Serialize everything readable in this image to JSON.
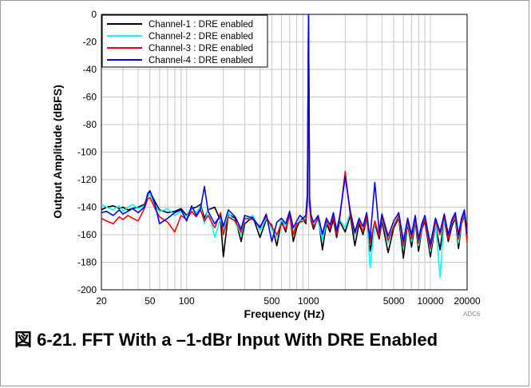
{
  "caption": "図 6-21. FFT With a –1-dBr Input With DRE Enabled",
  "figure_code": "ADC6",
  "chart_data": {
    "type": "line",
    "title": "",
    "xlabel": "Frequency (Hz)",
    "ylabel": "Output Amplitude (dBFS)",
    "xscale": "log",
    "xlim": [
      20,
      20000
    ],
    "ylim": [
      -200,
      0
    ],
    "x_ticks": [
      20,
      50,
      100,
      500,
      1000,
      5000,
      10000,
      20000
    ],
    "x_tick_labels": [
      "20",
      "50",
      "100",
      "500",
      "1000",
      "5000",
      "10000",
      "20000"
    ],
    "y_ticks": [
      0,
      -20,
      -40,
      -60,
      -80,
      -100,
      -120,
      -140,
      -160,
      -180,
      -200
    ],
    "y_tick_labels": [
      "0",
      "-20",
      "-40",
      "-60",
      "-80",
      "-100",
      "-120",
      "-140",
      "-160",
      "-180",
      "-200"
    ],
    "grid": true,
    "legend_position": "top-left",
    "series": [
      {
        "name": "Channel-1 : DRE enabled",
        "color": "#000000",
        "x": [
          20,
          22,
          25,
          28,
          30,
          33,
          36,
          40,
          45,
          48,
          50,
          55,
          60,
          70,
          80,
          90,
          100,
          110,
          120,
          130,
          140,
          150,
          170,
          190,
          200,
          220,
          250,
          280,
          300,
          350,
          400,
          450,
          500,
          550,
          600,
          650,
          700,
          750,
          800,
          850,
          900,
          950,
          980,
          1000,
          1020,
          1050,
          1100,
          1200,
          1300,
          1400,
          1500,
          1600,
          1700,
          1800,
          2000,
          2200,
          2400,
          2600,
          2800,
          3000,
          3200,
          3500,
          3800,
          4000,
          4500,
          5000,
          5500,
          6000,
          6500,
          7000,
          7500,
          8000,
          8500,
          9000,
          10000,
          11000,
          12000,
          13000,
          14000,
          15000,
          16000,
          17000,
          18000,
          19000,
          20000
        ],
        "y": [
          -142,
          -140,
          -139,
          -141,
          -140,
          -142,
          -141,
          -140,
          -138,
          -132,
          -129,
          -136,
          -142,
          -144,
          -143,
          -141,
          -146,
          -141,
          -140,
          -138,
          -148,
          -142,
          -140,
          -150,
          -176,
          -145,
          -148,
          -165,
          -152,
          -147,
          -162,
          -149,
          -153,
          -168,
          -150,
          -158,
          -144,
          -165,
          -155,
          -150,
          -148,
          -152,
          -135,
          -1,
          -136,
          -150,
          -156,
          -147,
          -171,
          -152,
          -158,
          -149,
          -162,
          -150,
          -158,
          -146,
          -168,
          -152,
          -160,
          -148,
          -172,
          -152,
          -163,
          -150,
          -173,
          -155,
          -148,
          -177,
          -152,
          -169,
          -150,
          -172,
          -156,
          -150,
          -176,
          -152,
          -171,
          -149,
          -165,
          -154,
          -148,
          -170,
          -152,
          -146,
          -162
        ]
      },
      {
        "name": "Channel-2 : DRE enabled",
        "color": "#00ffff",
        "x": [
          20,
          22,
          25,
          28,
          30,
          33,
          36,
          40,
          45,
          48,
          50,
          55,
          60,
          70,
          80,
          90,
          100,
          110,
          120,
          130,
          140,
          150,
          170,
          190,
          200,
          220,
          250,
          280,
          300,
          350,
          400,
          450,
          500,
          550,
          600,
          650,
          700,
          750,
          800,
          850,
          900,
          950,
          980,
          1000,
          1020,
          1050,
          1100,
          1200,
          1300,
          1400,
          1500,
          1600,
          1700,
          1800,
          2000,
          2200,
          2400,
          2600,
          2800,
          3000,
          3200,
          3500,
          3800,
          4000,
          4500,
          5000,
          5500,
          6000,
          6500,
          7000,
          7500,
          8000,
          8500,
          9000,
          10000,
          11000,
          12000,
          13000,
          14000,
          15000,
          16000,
          17000,
          18000,
          19000,
          20000
        ],
        "y": [
          -138,
          -140,
          -142,
          -139,
          -143,
          -140,
          -138,
          -141,
          -139,
          -131,
          -130,
          -139,
          -143,
          -141,
          -146,
          -143,
          -147,
          -140,
          -144,
          -139,
          -152,
          -141,
          -162,
          -148,
          -158,
          -144,
          -151,
          -160,
          -149,
          -146,
          -157,
          -148,
          -156,
          -162,
          -149,
          -154,
          -147,
          -158,
          -153,
          -149,
          -151,
          -147,
          -133,
          -1,
          -138,
          -148,
          -153,
          -150,
          -164,
          -151,
          -155,
          -146,
          -158,
          -149,
          -155,
          -144,
          -161,
          -150,
          -157,
          -146,
          -184,
          -151,
          -160,
          -148,
          -166,
          -153,
          -147,
          -170,
          -151,
          -165,
          -149,
          -168,
          -155,
          -148,
          -172,
          -151,
          -191,
          -148,
          -162,
          -152,
          -147,
          -166,
          -151,
          -145,
          -158
        ]
      },
      {
        "name": "Channel-3 : DRE enabled",
        "color": "#ff0000",
        "x": [
          20,
          22,
          25,
          28,
          30,
          33,
          36,
          40,
          45,
          48,
          50,
          55,
          60,
          70,
          80,
          90,
          100,
          110,
          120,
          130,
          140,
          150,
          170,
          190,
          200,
          220,
          250,
          280,
          300,
          350,
          400,
          450,
          500,
          550,
          600,
          650,
          700,
          750,
          800,
          850,
          900,
          950,
          980,
          1000,
          1020,
          1050,
          1100,
          1200,
          1300,
          1400,
          1500,
          1600,
          1700,
          1800,
          2000,
          2200,
          2400,
          2600,
          2800,
          3000,
          3200,
          3500,
          3800,
          4000,
          4500,
          5000,
          5500,
          6000,
          6500,
          7000,
          7500,
          8000,
          8500,
          9000,
          10000,
          11000,
          12000,
          13000,
          14000,
          15000,
          16000,
          17000,
          18000,
          19000,
          20000
        ],
        "y": [
          -148,
          -150,
          -152,
          -147,
          -149,
          -146,
          -148,
          -150,
          -141,
          -134,
          -133,
          -141,
          -147,
          -151,
          -158,
          -146,
          -149,
          -143,
          -147,
          -142,
          -150,
          -146,
          -155,
          -144,
          -160,
          -147,
          -150,
          -158,
          -148,
          -149,
          -154,
          -147,
          -154,
          -160,
          -152,
          -156,
          -146,
          -160,
          -152,
          -151,
          -150,
          -149,
          -136,
          -1,
          -139,
          -149,
          -154,
          -148,
          -159,
          -150,
          -156,
          -147,
          -160,
          -149,
          -114,
          -146,
          -159,
          -150,
          -158,
          -147,
          -166,
          -150,
          -161,
          -147,
          -164,
          -154,
          -146,
          -168,
          -150,
          -163,
          -148,
          -166,
          -154,
          -149,
          -170,
          -150,
          -160,
          -147,
          -163,
          -151,
          -146,
          -163,
          -150,
          -144,
          -166
        ]
      },
      {
        "name": "Channel-4 : DRE enabled",
        "color": "#0000ff",
        "x": [
          20,
          22,
          25,
          28,
          30,
          33,
          36,
          40,
          45,
          48,
          50,
          55,
          60,
          70,
          80,
          90,
          100,
          110,
          120,
          130,
          140,
          150,
          170,
          190,
          200,
          220,
          250,
          280,
          300,
          350,
          400,
          450,
          500,
          550,
          600,
          650,
          700,
          750,
          800,
          850,
          900,
          950,
          980,
          1000,
          1020,
          1050,
          1100,
          1200,
          1300,
          1400,
          1500,
          1600,
          1700,
          1800,
          2000,
          2200,
          2400,
          2600,
          2800,
          3000,
          3200,
          3500,
          3800,
          4000,
          4500,
          5000,
          5500,
          6000,
          6500,
          7000,
          7500,
          8000,
          8500,
          9000,
          10000,
          11000,
          12000,
          13000,
          14000,
          15000,
          16000,
          17000,
          18000,
          19000,
          20000
        ],
        "y": [
          -144,
          -143,
          -146,
          -142,
          -145,
          -143,
          -141,
          -144,
          -140,
          -130,
          -128,
          -138,
          -152,
          -148,
          -144,
          -142,
          -150,
          -139,
          -146,
          -141,
          -125,
          -143,
          -152,
          -146,
          -154,
          -142,
          -147,
          -156,
          -146,
          -148,
          -155,
          -145,
          -165,
          -151,
          -148,
          -152,
          -143,
          -155,
          -150,
          -146,
          -148,
          -146,
          -130,
          0,
          -133,
          -146,
          -151,
          -146,
          -160,
          -148,
          -153,
          -144,
          -157,
          -147,
          -118,
          -143,
          -158,
          -148,
          -154,
          -144,
          -163,
          -122,
          -158,
          -145,
          -161,
          -150,
          -144,
          -165,
          -148,
          -160,
          -146,
          -163,
          -152,
          -146,
          -167,
          -148,
          -158,
          -145,
          -160,
          -149,
          -144,
          -160,
          -148,
          -142,
          -159
        ]
      }
    ]
  }
}
